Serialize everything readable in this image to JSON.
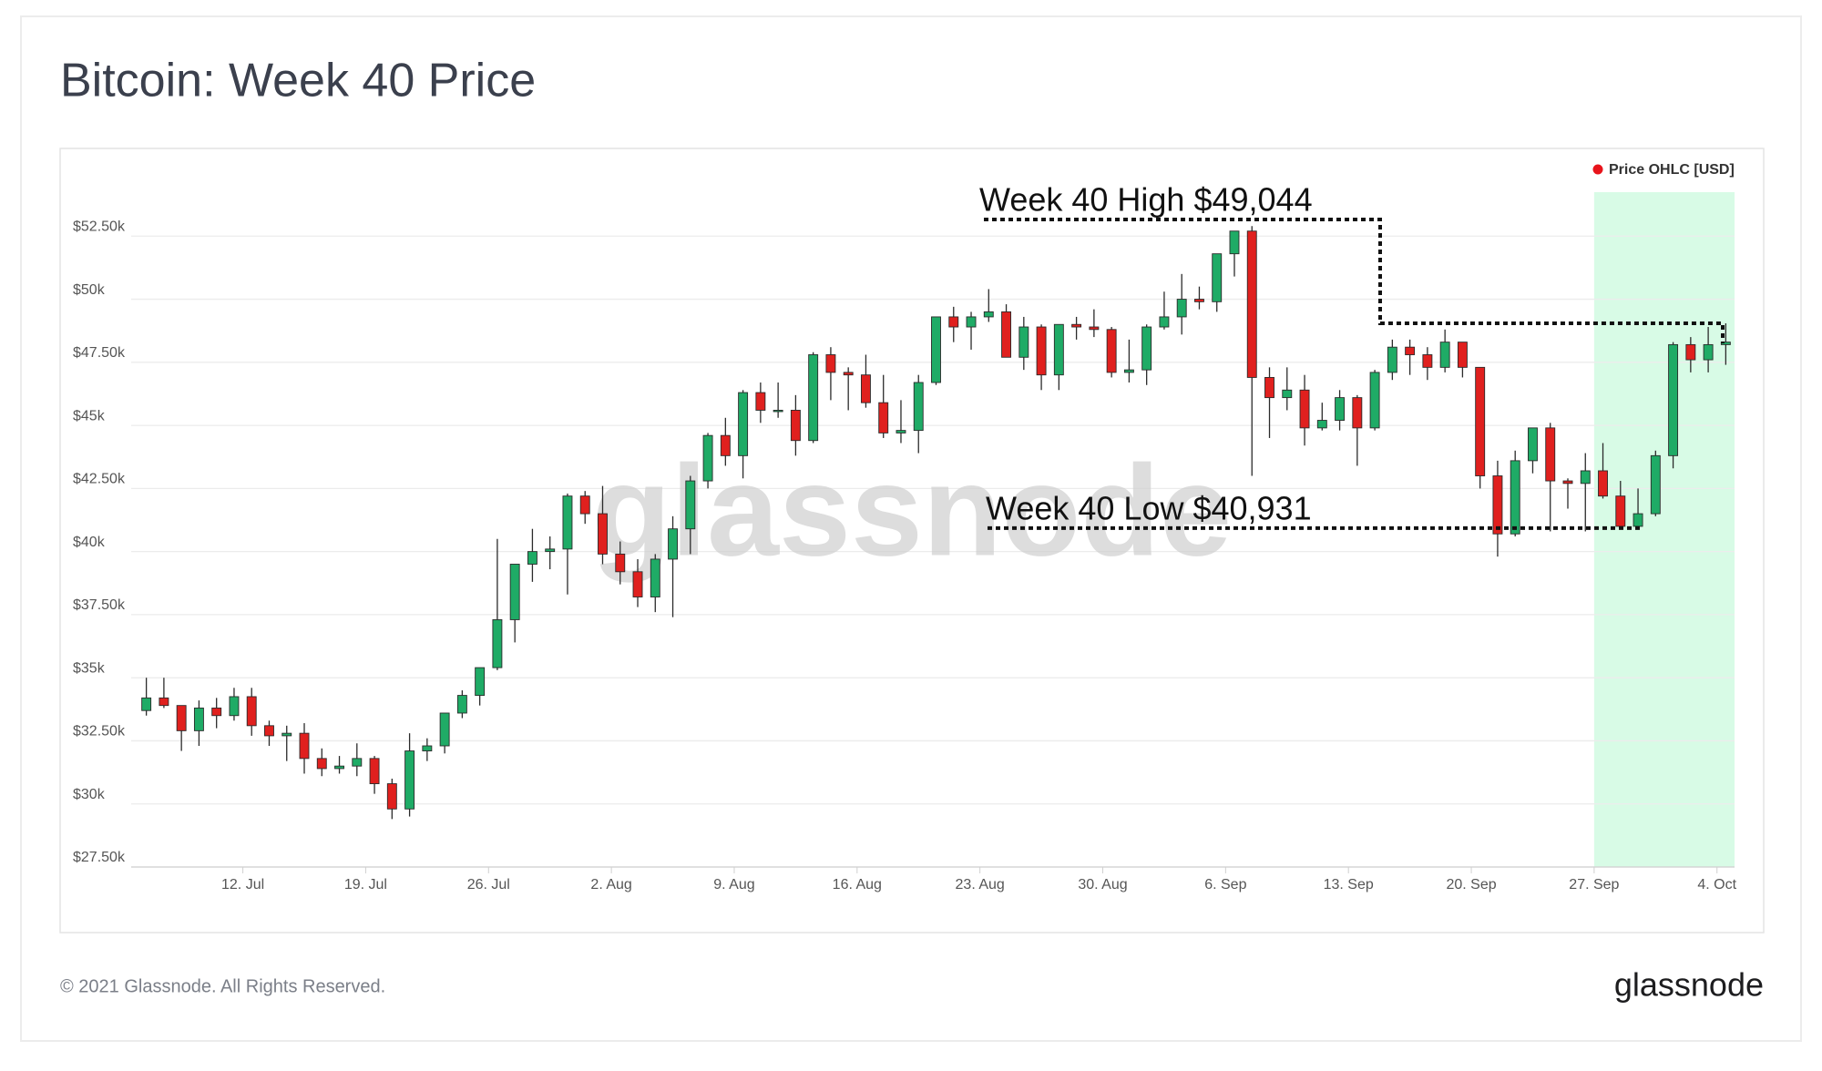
{
  "page": {
    "title": "Bitcoin: Week 40 Price",
    "footer": "© 2021 Glassnode. All Rights Reserved.",
    "logo": "glassnode"
  },
  "chart_data": {
    "type": "candlestick",
    "watermark": "glassnode",
    "categories": [
      null,
      null,
      null,
      null,
      null,
      null,
      "12. Jul",
      null,
      null,
      null,
      null,
      null,
      null,
      "19. Jul",
      null,
      null,
      null,
      null,
      null,
      null,
      "26. Jul",
      null,
      null,
      null,
      null,
      null,
      null,
      "2. Aug",
      null,
      null,
      null,
      null,
      null,
      null,
      "9. Aug",
      null,
      null,
      null,
      null,
      null,
      null,
      "16. Aug",
      null,
      null,
      null,
      null,
      null,
      null,
      "23. Aug",
      null,
      null,
      null,
      null,
      null,
      null,
      "30. Aug",
      null,
      null,
      null,
      null,
      null,
      null,
      "6. Sep",
      null,
      null,
      null,
      null,
      null,
      null,
      "13. Sep",
      null,
      null,
      null,
      null,
      null,
      null,
      "20. Sep",
      null,
      null,
      null,
      null,
      null,
      null,
      "27. Sep",
      null,
      null,
      null,
      null,
      null,
      null,
      "4. Oct"
    ],
    "highlight_from": "27. Sep",
    "highlight_color": "#d8fbe6",
    "series": [
      {
        "name": "Price OHLC [USD]",
        "color": "#e8141b",
        "up_color": "#1fab66",
        "down_color": "#e0201e",
        "open": [
          33700,
          34200,
          33900,
          32900,
          33800,
          33500,
          34250,
          33100,
          32700,
          32800,
          31800,
          31400,
          31500,
          31800,
          30800,
          29800,
          32100,
          32300,
          33600,
          34300,
          35400,
          37300,
          39500,
          40000,
          40100,
          42200,
          41500,
          39900,
          39200,
          38200,
          39700,
          40900,
          42800,
          44600,
          43800,
          46300,
          45600,
          45600,
          44400,
          47800,
          47100,
          47000,
          45900,
          44700,
          44800,
          46700,
          49300,
          48900,
          49300,
          49500,
          47700,
          48900,
          47000,
          49000,
          48900,
          48800,
          47100,
          47200,
          48900,
          49300,
          50000,
          49900,
          51800,
          52700,
          46900,
          46100,
          46400,
          44900,
          45200,
          46100,
          44900,
          47100,
          48100,
          47800,
          47300,
          48300,
          47300,
          43000,
          40700,
          43600,
          44900,
          42800,
          42700,
          43200,
          42200,
          41000,
          41500,
          43800,
          48200,
          47600,
          48200
        ],
        "high": [
          35000,
          35000,
          33900,
          34100,
          34200,
          34600,
          34600,
          33300,
          33100,
          33200,
          32200,
          31900,
          32400,
          31900,
          31000,
          32800,
          32600,
          33600,
          34500,
          35400,
          40500,
          39500,
          40900,
          40600,
          42300,
          42400,
          42600,
          40400,
          39700,
          39900,
          41400,
          43000,
          44700,
          45300,
          46400,
          46700,
          46700,
          46200,
          47900,
          48100,
          47300,
          47800,
          47000,
          46000,
          47000,
          49300,
          49700,
          49500,
          50400,
          49800,
          49300,
          49000,
          49000,
          49300,
          49600,
          48900,
          48400,
          49000,
          50300,
          51000,
          50500,
          51800,
          52700,
          52900,
          47300,
          47300,
          47000,
          45900,
          46400,
          46200,
          47200,
          48400,
          48400,
          48100,
          48800,
          48300,
          47300,
          43600,
          44000,
          44900,
          45100,
          42900,
          43900,
          44300,
          42800,
          42500,
          44000,
          48300,
          48500,
          48900,
          49044
        ],
        "low": [
          33500,
          33800,
          32100,
          32300,
          33000,
          33300,
          32700,
          32300,
          31700,
          31200,
          31100,
          31200,
          31100,
          30400,
          29400,
          29500,
          31700,
          32000,
          33400,
          33900,
          35300,
          36400,
          38800,
          39300,
          38300,
          41100,
          39500,
          38700,
          37800,
          37600,
          37400,
          39900,
          42500,
          43400,
          42900,
          45100,
          45300,
          43800,
          44300,
          46000,
          45600,
          45700,
          44500,
          44300,
          43900,
          46600,
          48300,
          48000,
          49100,
          47700,
          47200,
          46400,
          46400,
          48400,
          48500,
          46900,
          46700,
          46600,
          48800,
          48600,
          49600,
          49500,
          50900,
          43000,
          44500,
          45600,
          44200,
          44800,
          44800,
          43400,
          44800,
          46800,
          47000,
          46800,
          47100,
          46900,
          42500,
          39800,
          40600,
          43100,
          40800,
          41700,
          40800,
          42100,
          40950,
          40931,
          41400,
          43300,
          47100,
          47100,
          47400
        ],
        "close": [
          34200,
          33900,
          32900,
          33800,
          33500,
          34250,
          33100,
          32700,
          32800,
          31800,
          31400,
          31500,
          31800,
          30800,
          29800,
          32100,
          32300,
          33600,
          34300,
          35400,
          37300,
          39500,
          40000,
          40100,
          42200,
          41500,
          39900,
          39200,
          38200,
          39700,
          40900,
          42800,
          44600,
          43800,
          46300,
          45600,
          45600,
          44400,
          47800,
          47100,
          47000,
          45900,
          44700,
          44800,
          46700,
          49300,
          48900,
          49300,
          49500,
          47700,
          48900,
          47000,
          49000,
          48900,
          48800,
          47100,
          47200,
          48900,
          49300,
          50000,
          49900,
          51800,
          52700,
          46900,
          46100,
          46400,
          44900,
          45200,
          46100,
          44900,
          47100,
          48100,
          47800,
          47300,
          48300,
          47300,
          43000,
          40700,
          43600,
          44900,
          42800,
          42700,
          43200,
          42200,
          41000,
          41500,
          43800,
          48200,
          47600,
          48200,
          48300
        ]
      }
    ],
    "annotations": [
      {
        "text": "Week 40 High $49,044",
        "value": 49044
      },
      {
        "text": "Week 40 Low $40,931",
        "value": 40931
      }
    ],
    "ylim": [
      27500,
      55000
    ],
    "yticks": [
      {
        "value": 27500,
        "label": "$27.50k"
      },
      {
        "value": 30000,
        "label": "$30k"
      },
      {
        "value": 32500,
        "label": "$32.50k"
      },
      {
        "value": 35000,
        "label": "$35k"
      },
      {
        "value": 37500,
        "label": "$37.50k"
      },
      {
        "value": 40000,
        "label": "$40k"
      },
      {
        "value": 42500,
        "label": "$42.50k"
      },
      {
        "value": 45000,
        "label": "$45k"
      },
      {
        "value": 47500,
        "label": "$47.50k"
      },
      {
        "value": 50000,
        "label": "$50k"
      },
      {
        "value": 52500,
        "label": "$52.50k"
      }
    ],
    "grid": true,
    "legend": "top-right"
  }
}
